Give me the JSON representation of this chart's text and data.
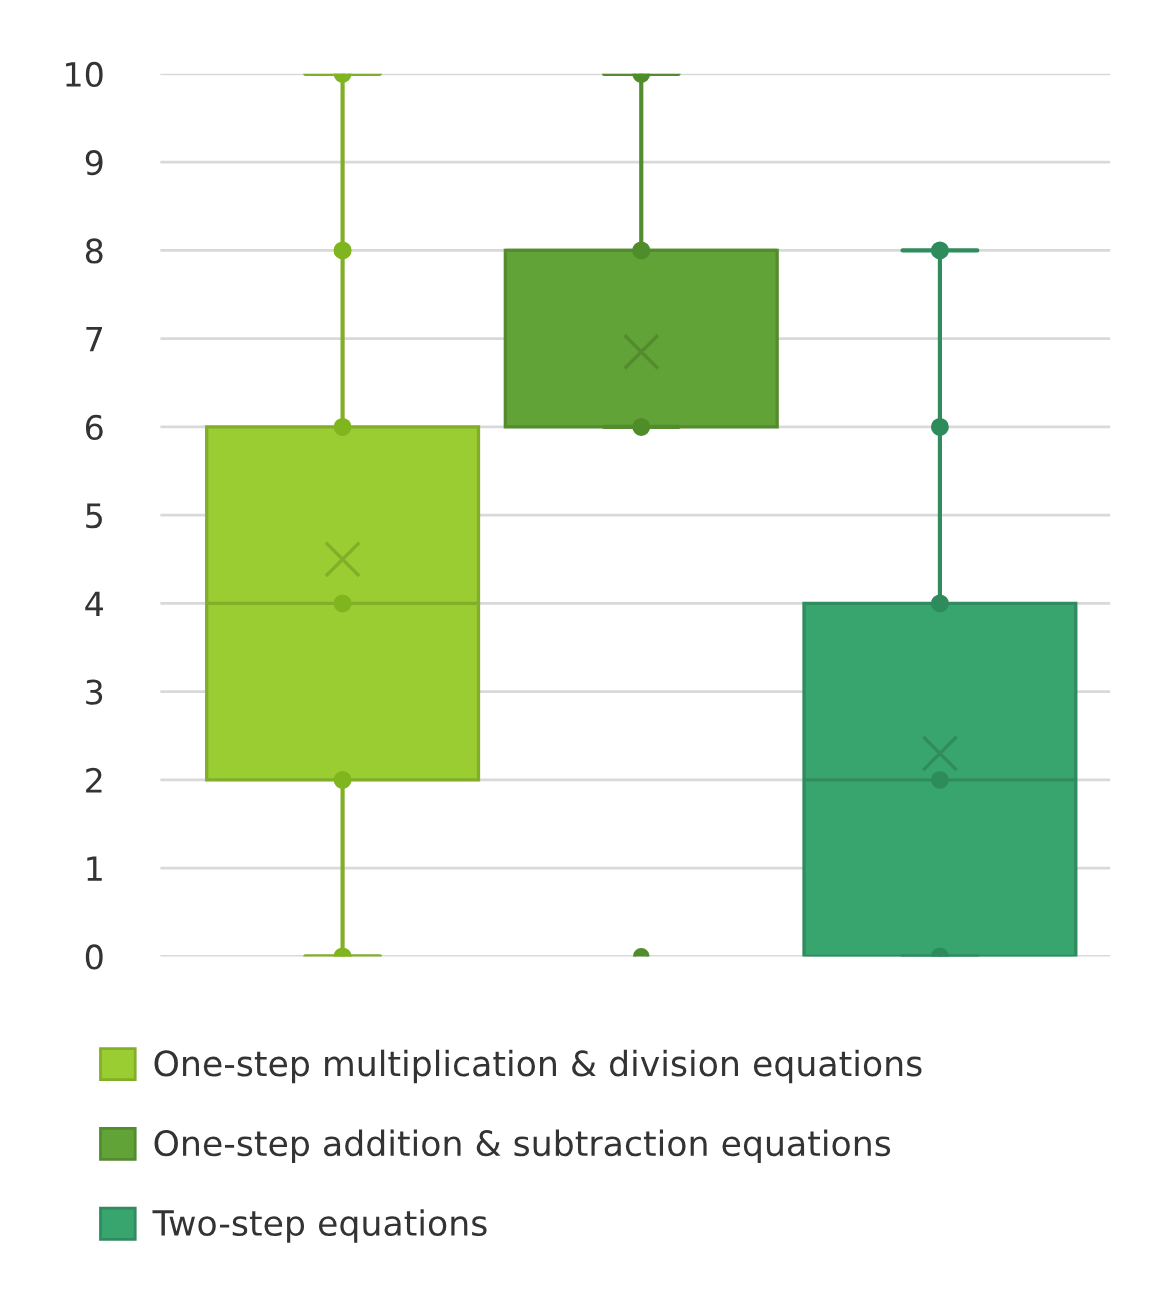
{
  "chart_data": {
    "type": "box",
    "categories": [
      null,
      null,
      null
    ],
    "ylim": [
      0,
      10
    ],
    "yticks": [
      0,
      1,
      2,
      3,
      4,
      5,
      6,
      7,
      8,
      9,
      10
    ],
    "grid": "y",
    "legend": "bottom",
    "tick_labels": "y",
    "series": [
      {
        "type": "box",
        "name": "One-step multiplication & division equations",
        "color": "#9acd32",
        "boxes": [
          {
            "low": 0,
            "q1": 2,
            "median": 4,
            "q3": 6,
            "high": 10,
            "mean": 4.5
          },
          null,
          null
        ]
      },
      {
        "type": "box",
        "name": "One-step addition & subtraction equations",
        "color": "#62a337",
        "boxes": [
          null,
          {
            "low": 6,
            "q1": 6,
            "median": 8,
            "q3": 8,
            "high": 10,
            "mean": 6.85,
            "outliers": [
              0
            ]
          },
          null
        ]
      },
      {
        "type": "box",
        "name": "Two-step equations",
        "color": "#38a56f",
        "boxes": [
          null,
          null,
          {
            "low": 0,
            "q1": 0,
            "median": 2,
            "q3": 4,
            "high": 8,
            "mean": 2.3
          }
        ]
      },
      {
        "type": "scatter",
        "colors": [
          "#7fb51e",
          "#4f8c2a",
          "#2e8c5c"
        ],
        "values": [
          0,
          6,
          0
        ]
      },
      {
        "type": "scatter",
        "colors": [
          "#7fb51e",
          "#4f8c2a",
          "#2e8c5c"
        ],
        "values": [
          2,
          8,
          2
        ]
      },
      {
        "type": "scatter",
        "colors": [
          "#7fb51e",
          "#4f8c2a",
          "#2e8c5c"
        ],
        "values": [
          4,
          10,
          4
        ]
      },
      {
        "type": "scatter",
        "colors": [
          "#7fb51e",
          "#4f8c2a",
          "#2e8c5c"
        ],
        "values": [
          6,
          null,
          6
        ]
      },
      {
        "type": "scatter",
        "colors": [
          "#7fb51e",
          "#4f8c2a",
          "#2e8c5c"
        ],
        "values": [
          8,
          null,
          8
        ]
      },
      {
        "type": "scatter",
        "colors": [
          "#7fb51e",
          "#4f8c2a",
          "#2e8c5c"
        ],
        "values": [
          10,
          null,
          null
        ]
      }
    ]
  }
}
